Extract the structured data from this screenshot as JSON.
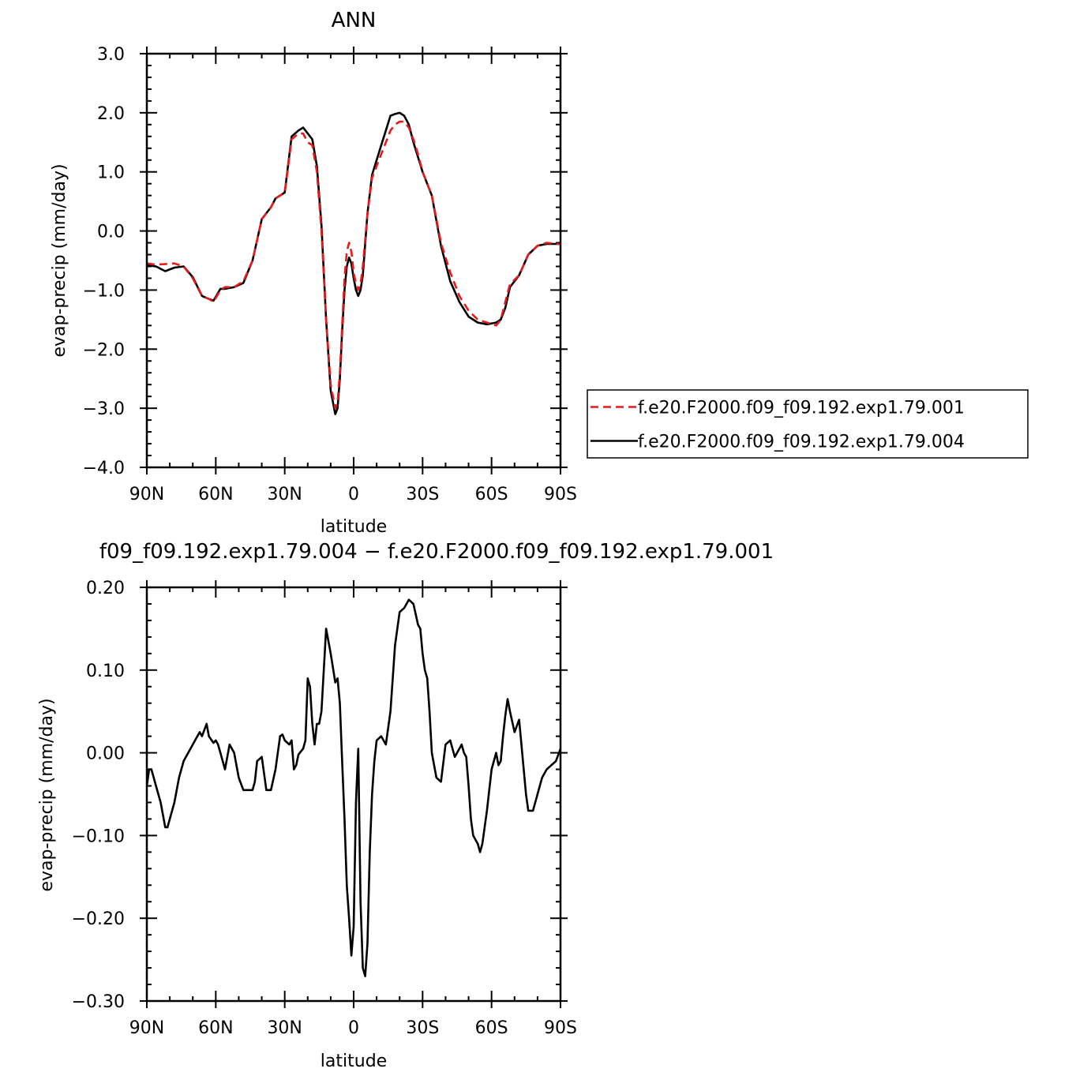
{
  "chart_data": [
    {
      "type": "line",
      "title": "ANN",
      "xlabel": "latitude",
      "ylabel": "evap-precip (mm/day)",
      "xlim": [
        90,
        -90
      ],
      "ylim": [
        -4.0,
        3.0
      ],
      "x_ticks": [
        90,
        60,
        30,
        0,
        -30,
        -60,
        -90
      ],
      "x_tick_labels": [
        "90N",
        "60N",
        "30N",
        "0",
        "30S",
        "60S",
        "90S"
      ],
      "y_ticks": [
        -4.0,
        -3.0,
        -2.0,
        -1.0,
        0.0,
        1.0,
        2.0,
        3.0
      ],
      "y_tick_labels": [
        "−4.0",
        "−3.0",
        "−2.0",
        "−1.0",
        "0.0",
        "1.0",
        "2.0",
        "3.0"
      ],
      "grid": false,
      "legend_position": "right",
      "series": [
        {
          "name": "f.e20.F2000.f09_f09.192.exp1.79.001",
          "color": "#e41a1c",
          "dash": "dashed",
          "x": [
            90,
            86,
            82,
            78,
            74,
            70,
            66,
            63,
            61,
            58,
            56,
            52,
            48,
            44,
            40,
            36,
            34,
            30,
            27,
            24,
            22,
            20,
            18,
            16,
            14,
            12,
            10,
            8,
            7,
            6,
            5,
            4,
            3,
            2,
            1,
            0,
            -1,
            -2,
            -3,
            -4,
            -6,
            -8,
            -10,
            -12,
            -14,
            -16,
            -18,
            -20,
            -22,
            -24,
            -26,
            -28,
            -30,
            -34,
            -38,
            -42,
            -46,
            -50,
            -54,
            -58,
            -62,
            -64,
            -66,
            -68,
            -72,
            -76,
            -80,
            -84,
            -88,
            -90
          ],
          "y": [
            -0.55,
            -0.57,
            -0.56,
            -0.55,
            -0.6,
            -0.8,
            -1.1,
            -1.15,
            -1.2,
            -1.0,
            -0.95,
            -0.95,
            -0.85,
            -0.5,
            0.2,
            0.4,
            0.55,
            0.65,
            1.55,
            1.65,
            1.65,
            1.5,
            1.45,
            1.0,
            0.0,
            -1.5,
            -2.6,
            -3.0,
            -2.9,
            -2.4,
            -1.6,
            -0.8,
            -0.35,
            -0.2,
            -0.35,
            -0.7,
            -0.9,
            -1.0,
            -0.9,
            -0.6,
            0.3,
            0.9,
            1.1,
            1.3,
            1.5,
            1.7,
            1.8,
            1.85,
            1.85,
            1.75,
            1.55,
            1.3,
            1.0,
            0.6,
            -0.2,
            -0.7,
            -1.1,
            -1.35,
            -1.5,
            -1.55,
            -1.6,
            -1.5,
            -1.2,
            -0.9,
            -0.75,
            -0.4,
            -0.25,
            -0.2,
            -0.22,
            -0.22
          ]
        },
        {
          "name": "f.e20.F2000.f09_f09.192.exp1.79.004",
          "color": "#000000",
          "dash": "solid",
          "x": [
            90,
            86,
            82,
            78,
            74,
            70,
            66,
            63,
            61,
            58,
            56,
            52,
            48,
            44,
            40,
            36,
            34,
            30,
            27,
            24,
            22,
            20,
            18,
            16,
            14,
            12,
            10,
            8,
            7,
            6,
            5,
            4,
            3,
            2,
            1,
            0,
            -1,
            -2,
            -3,
            -4,
            -6,
            -8,
            -10,
            -12,
            -14,
            -16,
            -18,
            -20,
            -22,
            -24,
            -26,
            -28,
            -30,
            -34,
            -38,
            -42,
            -46,
            -50,
            -54,
            -58,
            -62,
            -64,
            -66,
            -68,
            -72,
            -76,
            -80,
            -84,
            -88,
            -90
          ],
          "y": [
            -0.58,
            -0.6,
            -0.68,
            -0.62,
            -0.6,
            -0.78,
            -1.1,
            -1.15,
            -1.18,
            -0.98,
            -0.98,
            -0.95,
            -0.88,
            -0.5,
            0.2,
            0.4,
            0.55,
            0.65,
            1.6,
            1.7,
            1.75,
            1.65,
            1.55,
            1.1,
            0.1,
            -1.5,
            -2.7,
            -3.1,
            -3.0,
            -2.5,
            -1.7,
            -1.0,
            -0.6,
            -0.45,
            -0.55,
            -0.8,
            -1.0,
            -1.1,
            -1.0,
            -0.75,
            0.3,
            0.95,
            1.2,
            1.45,
            1.7,
            1.95,
            1.98,
            2.0,
            1.95,
            1.8,
            1.5,
            1.25,
            1.0,
            0.6,
            -0.25,
            -0.85,
            -1.2,
            -1.45,
            -1.55,
            -1.58,
            -1.55,
            -1.5,
            -1.3,
            -0.95,
            -0.75,
            -0.4,
            -0.25,
            -0.22,
            -0.22,
            -0.22
          ]
        }
      ]
    },
    {
      "type": "line",
      "title": "f09_f09.192.exp1.79.004 − f.e20.F2000.f09_f09.192.exp1.79.001",
      "xlabel": "latitude",
      "ylabel": "evap-precip (mm/day)",
      "xlim": [
        90,
        -90
      ],
      "ylim": [
        -0.3,
        0.2
      ],
      "x_ticks": [
        90,
        60,
        30,
        0,
        -30,
        -60,
        -90
      ],
      "x_tick_labels": [
        "90N",
        "60N",
        "30N",
        "0",
        "30S",
        "60S",
        "90S"
      ],
      "y_ticks": [
        -0.3,
        -0.2,
        -0.1,
        0.0,
        0.1,
        0.2
      ],
      "y_tick_labels": [
        "−0.30",
        "−0.20",
        "−0.10",
        "0.00",
        "0.10",
        "0.20"
      ],
      "grid": false,
      "series": [
        {
          "color": "#000000",
          "dash": "solid",
          "x": [
            90,
            89,
            88,
            86,
            84,
            82,
            81,
            80,
            78,
            76,
            74,
            72,
            70,
            68,
            67,
            66,
            64,
            63,
            61,
            60,
            59,
            58,
            56,
            54,
            52,
            50,
            48,
            46,
            44,
            43,
            42,
            40,
            38,
            36,
            34,
            32,
            31,
            30,
            28,
            27,
            26,
            25,
            24,
            22,
            21,
            20,
            19,
            18,
            17,
            16,
            15,
            14,
            12,
            10,
            8,
            7,
            6,
            5,
            4,
            3,
            2,
            1,
            0,
            -1,
            -2,
            -3,
            -4,
            -5,
            -6,
            -7,
            -8,
            -9,
            -10,
            -12,
            -14,
            -16,
            -18,
            -19,
            -20,
            -22,
            -24,
            -26,
            -28,
            -29,
            -30,
            -31,
            -32,
            -33,
            -34,
            -36,
            -38,
            -40,
            -42,
            -44,
            -45,
            -46,
            -47,
            -48,
            -49,
            -50,
            -51,
            -52,
            -54,
            -55,
            -56,
            -58,
            -60,
            -62,
            -63,
            -64,
            -65,
            -66,
            -67,
            -68,
            -70,
            -72,
            -73,
            -74,
            -75,
            -76,
            -78,
            -80,
            -82,
            -84,
            -86,
            -88,
            -90
          ],
          "y": [
            -0.04,
            -0.02,
            -0.02,
            -0.04,
            -0.06,
            -0.09,
            -0.09,
            -0.08,
            -0.06,
            -0.03,
            -0.01,
            0.0,
            0.01,
            0.02,
            0.025,
            0.02,
            0.035,
            0.02,
            0.012,
            0.015,
            0.01,
            0.0,
            -0.02,
            0.01,
            0.0,
            -0.03,
            -0.045,
            -0.045,
            -0.045,
            -0.035,
            -0.01,
            -0.005,
            -0.045,
            -0.045,
            -0.02,
            0.02,
            0.022,
            0.015,
            0.01,
            0.015,
            -0.02,
            -0.015,
            -0.002,
            0.005,
            0.015,
            0.09,
            0.08,
            0.035,
            0.01,
            0.035,
            0.035,
            0.05,
            0.15,
            0.12,
            0.085,
            0.09,
            0.06,
            -0.01,
            -0.08,
            -0.16,
            -0.2,
            -0.245,
            -0.21,
            -0.06,
            0.005,
            -0.18,
            -0.26,
            -0.27,
            -0.23,
            -0.12,
            -0.05,
            -0.01,
            0.015,
            0.02,
            0.01,
            0.05,
            0.13,
            0.15,
            0.17,
            0.175,
            0.185,
            0.18,
            0.155,
            0.15,
            0.12,
            0.1,
            0.09,
            0.05,
            0.0,
            -0.03,
            -0.035,
            0.01,
            0.015,
            -0.005,
            0.0,
            0.005,
            0.01,
            0.0,
            -0.005,
            -0.04,
            -0.08,
            -0.1,
            -0.11,
            -0.12,
            -0.11,
            -0.07,
            -0.02,
            0.0,
            -0.015,
            -0.01,
            0.02,
            0.045,
            0.065,
            0.05,
            0.025,
            0.04,
            0.01,
            -0.02,
            -0.05,
            -0.07,
            -0.07,
            -0.05,
            -0.03,
            -0.02,
            -0.015,
            -0.01,
            0.005
          ]
        }
      ]
    }
  ]
}
